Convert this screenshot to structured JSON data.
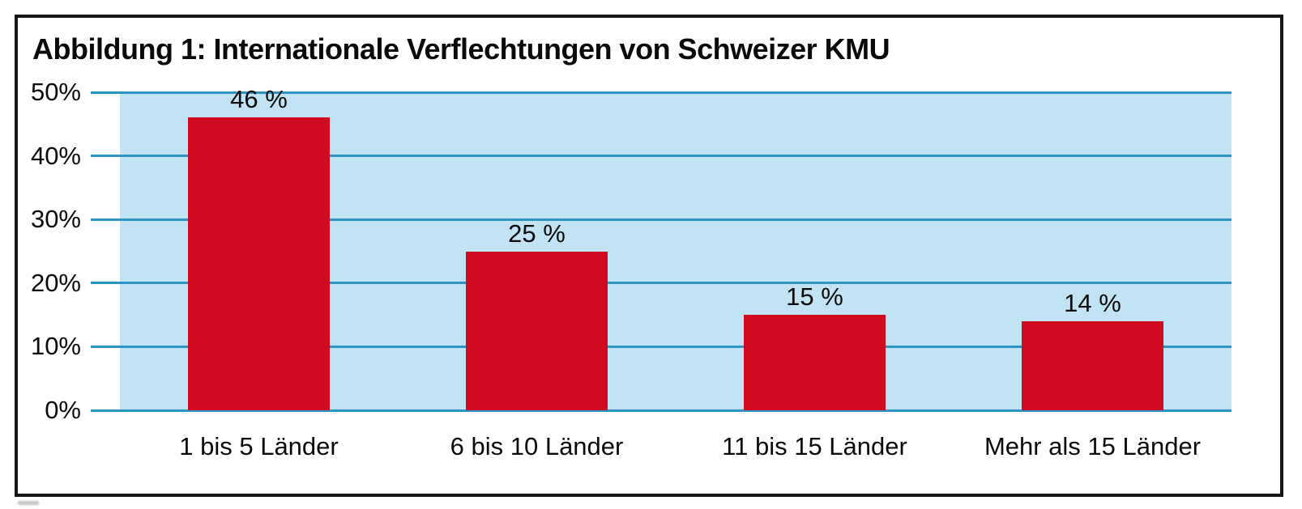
{
  "figure": {
    "title": "Abbildung 1: Internationale Verflechtungen von Schweizer KMU"
  },
  "chart_data": {
    "type": "bar",
    "title": "Abbildung 1: Internationale Verflechtungen von Schweizer KMU",
    "categories": [
      "1 bis 5 Länder",
      "6 bis 10 Länder",
      "11 bis 15 Länder",
      "Mehr als 15 Länder"
    ],
    "values": [
      46,
      25,
      15,
      14
    ],
    "bar_labels": [
      "46 %",
      "25 %",
      "15 %",
      "14 %"
    ],
    "xlabel": "",
    "ylabel": "",
    "ylim": [
      0,
      50
    ],
    "yticks": [
      {
        "value": 50,
        "label": "50%"
      },
      {
        "value": 40,
        "label": "40%"
      },
      {
        "value": 30,
        "label": "30%"
      },
      {
        "value": 20,
        "label": "20%"
      },
      {
        "value": 10,
        "label": "10%"
      },
      {
        "value": 0,
        "label": "0%"
      }
    ],
    "grid": true,
    "legend": false,
    "colors": {
      "bar": "#d10b1f",
      "plot_background": "#c2e3f4",
      "gridline": "#2d95c5",
      "frame_border": "#161616",
      "text": "#0a0a0a"
    }
  }
}
